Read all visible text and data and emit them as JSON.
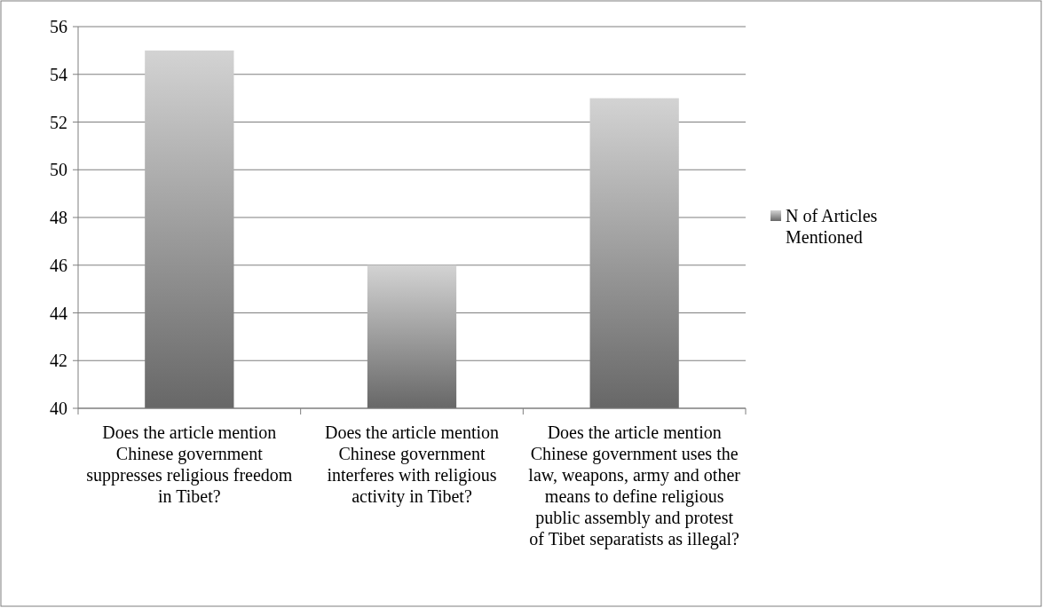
{
  "chart_data": {
    "type": "bar",
    "categories": [
      "Does the article mention Chinese government suppresses religious freedom in Tibet?",
      "Does the article mention Chinese government interferes with religious activity in Tibet?",
      "Does the article mention Chinese government uses the law, weapons, army and other means to define religious public assembly and protest of Tibet separatists as illegal?"
    ],
    "series": [
      {
        "name": "N of Articles Mentioned",
        "color": "#999999",
        "values": [
          55,
          46,
          53
        ]
      }
    ],
    "ylim": [
      40,
      56
    ],
    "yticks": [
      40,
      42,
      44,
      46,
      48,
      50,
      52,
      54,
      56
    ],
    "grid": "y",
    "legend": "right"
  }
}
